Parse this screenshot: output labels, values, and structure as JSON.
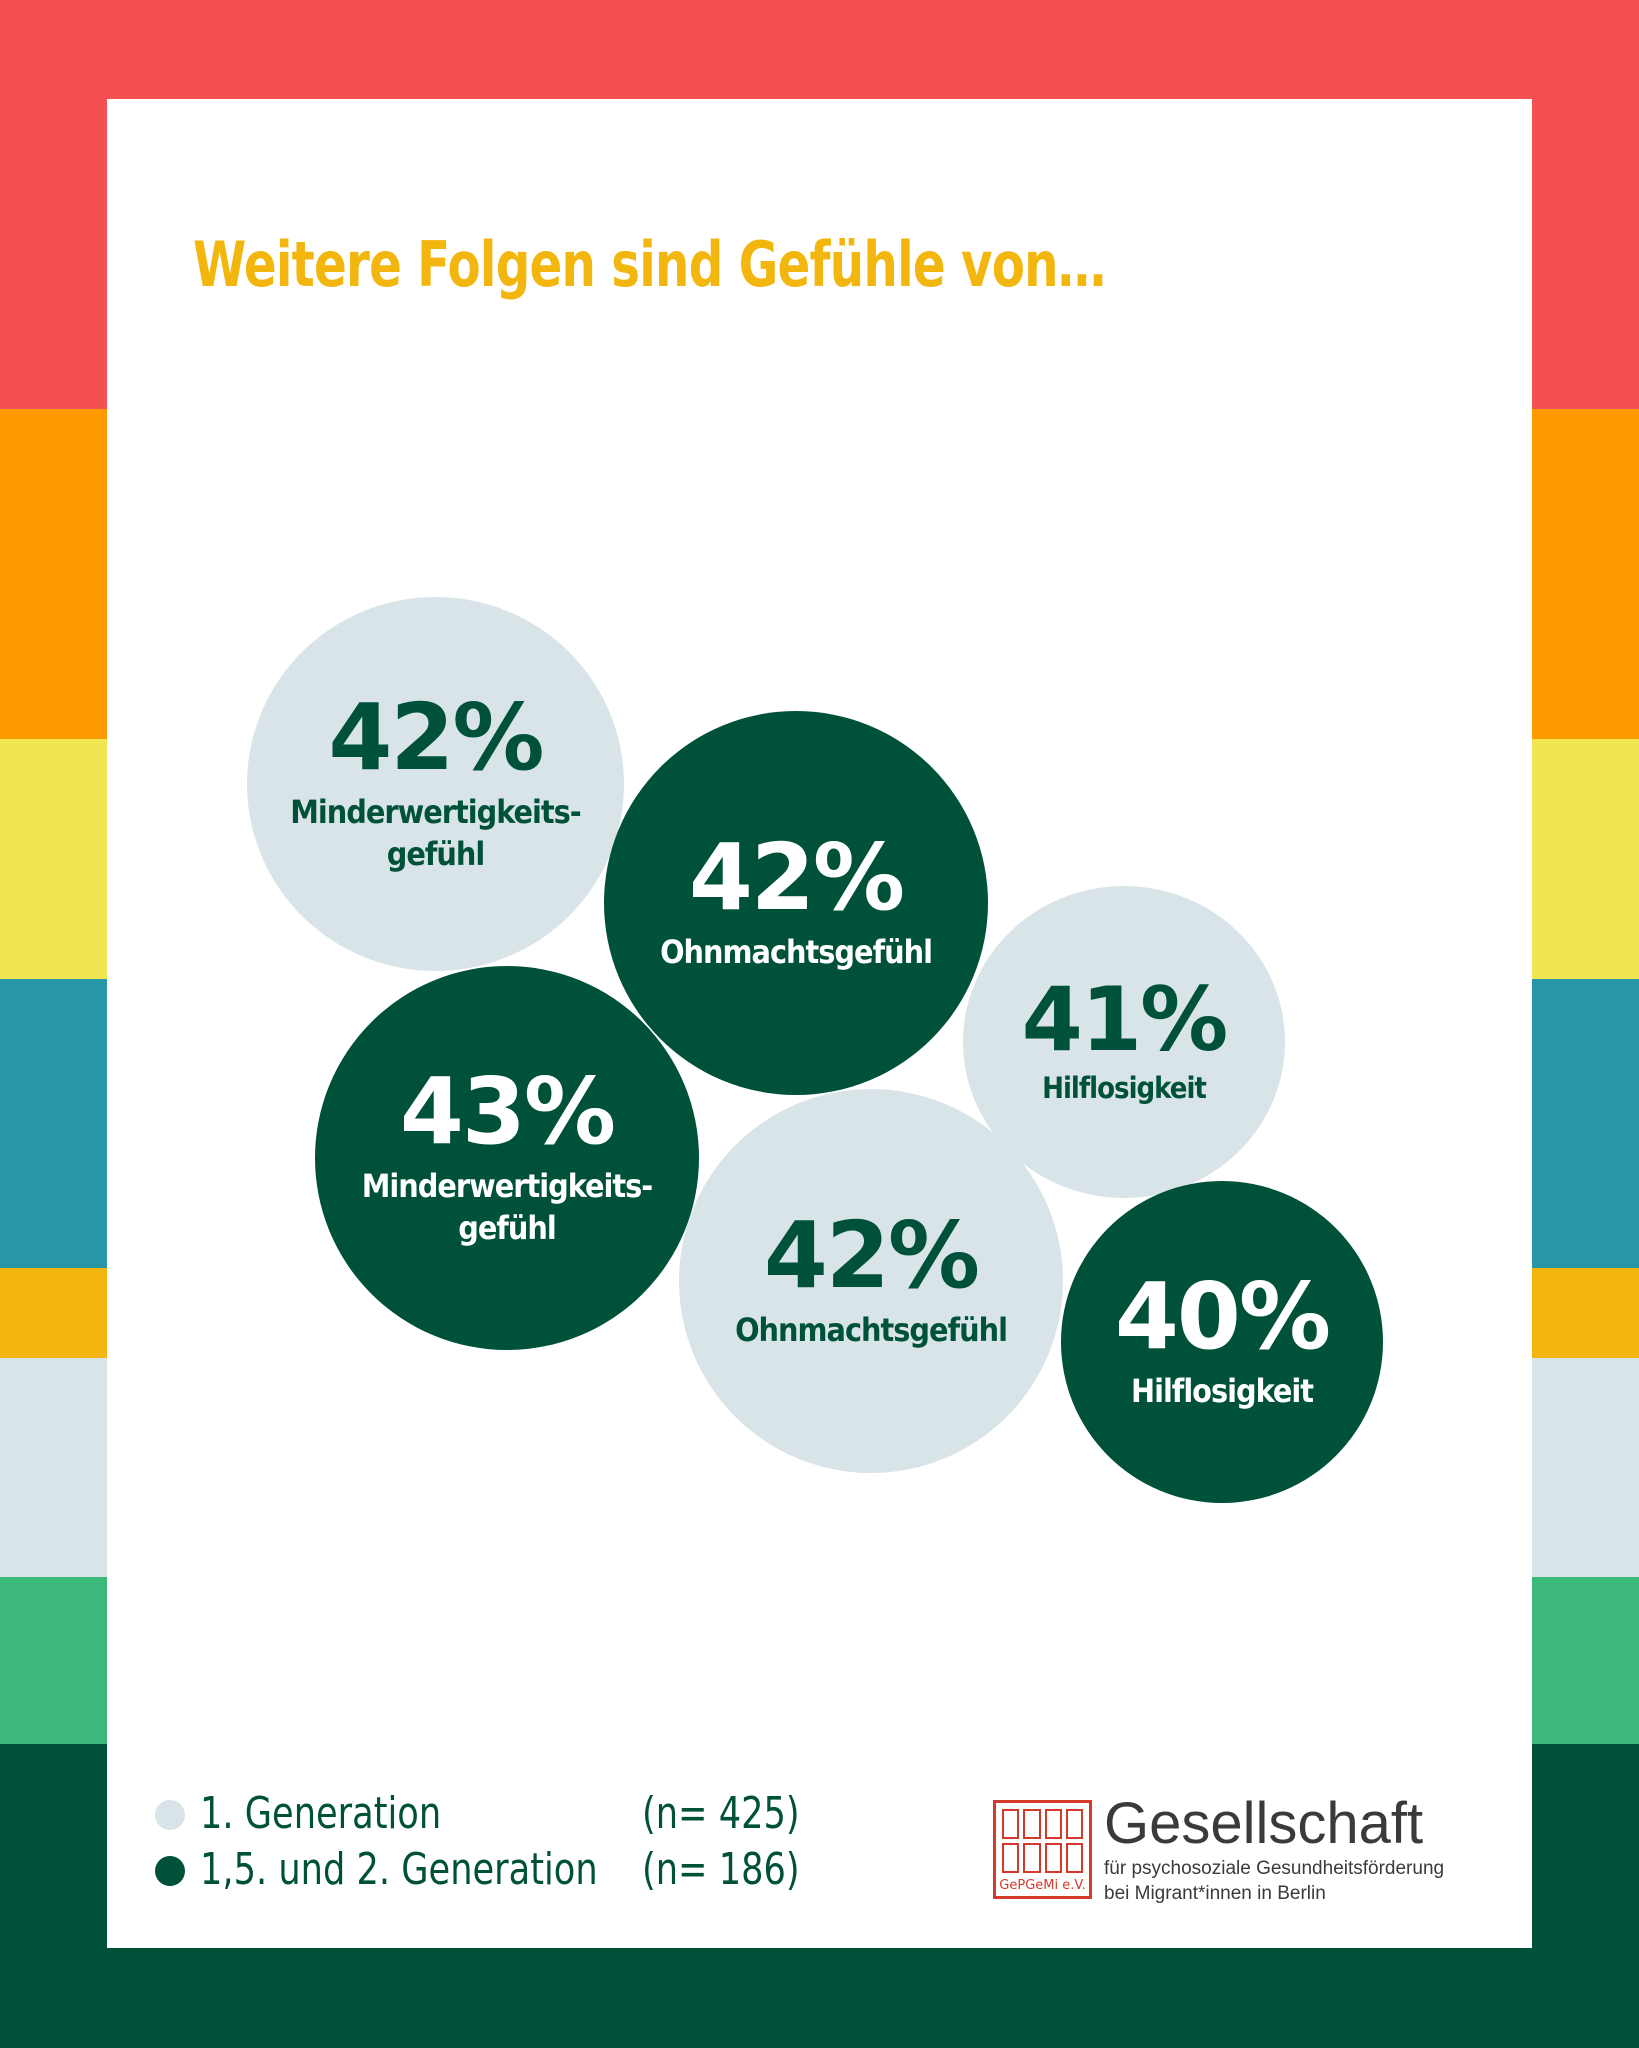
{
  "header": {
    "title": "Weitere Folgen sind Gefühle von…"
  },
  "colors": {
    "title": "#f2b60f",
    "light_bubble": "#d9e4e8",
    "dark_bubble": "#00513a",
    "stripes": [
      "#f45052",
      "#fd9a00",
      "#efe651",
      "#2896a6",
      "#f2b60f",
      "#d9e4e8",
      "#3bb87a",
      "#00513a"
    ]
  },
  "chart_data": {
    "type": "bubble",
    "title": "Weitere Folgen sind Gefühle von…",
    "series": [
      {
        "name": "1. Generation",
        "n": "(n= 425)",
        "color": "#d9e4e8",
        "values": [
          {
            "pct": "42%",
            "label": "Minderwertigkeits-\ngefühl"
          },
          {
            "pct": "42%",
            "label": "Ohnmachtsgefühl"
          },
          {
            "pct": "41%",
            "label": "Hilflosigkeit"
          }
        ]
      },
      {
        "name": "1,5. und 2. Generation",
        "n": "(n= 186)",
        "color": "#00513a",
        "values": [
          {
            "pct": "43%",
            "label": "Minderwertigkeits-\ngefühl"
          },
          {
            "pct": "42%",
            "label": "Ohnmachtsgefühl"
          },
          {
            "pct": "40%",
            "label": "Hilflosigkeit"
          }
        ]
      }
    ]
  },
  "bubbles": [
    {
      "pct": "42%",
      "label": "Minderwertigkeits-\ngefühl",
      "generation": "1. Generation",
      "color": "#d9e4e8",
      "text_color": "#00513a"
    },
    {
      "pct": "42%",
      "label": "Ohnmachtsgefühl",
      "generation": "1,5. und 2. Generation",
      "color": "#00513a",
      "text_color": "#ffffff"
    },
    {
      "pct": "41%",
      "label": "Hilflosigkeit",
      "generation": "1. Generation",
      "color": "#d9e4e8",
      "text_color": "#00513a"
    },
    {
      "pct": "43%",
      "label": "Minderwertigkeits-\ngefühl",
      "generation": "1,5. und 2. Generation",
      "color": "#00513a",
      "text_color": "#ffffff"
    },
    {
      "pct": "42%",
      "label": "Ohnmachtsgefühl",
      "generation": "1. Generation",
      "color": "#d9e4e8",
      "text_color": "#00513a"
    },
    {
      "pct": "40%",
      "label": "Hilflosigkeit",
      "generation": "1,5. und 2. Generation",
      "color": "#00513a",
      "text_color": "#ffffff"
    }
  ],
  "legend": [
    {
      "label": "1. Generation",
      "n": "(n= 425)",
      "color": "#d9e4e8"
    },
    {
      "label": "1,5. und 2. Generation",
      "n": "(n= 186)",
      "color": "#00513a"
    }
  ],
  "logo": {
    "name": "Gesellschaft",
    "line1": "für psychosoziale Gesundheitsförderung",
    "line2": "bei Migrant*innen in Berlin",
    "seal_text": "GePGeMi e.V.",
    "icon": "seal-stamp-icon"
  }
}
